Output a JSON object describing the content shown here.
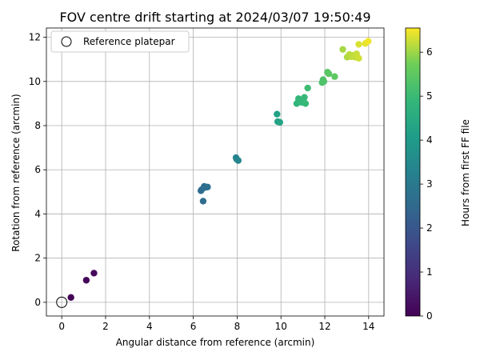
{
  "chart_data": {
    "type": "scatter",
    "title": "FOV centre drift starting at 2024/03/07 19:50:49",
    "xlabel": "Angular distance from reference (arcmin)",
    "ylabel": "Rotation from reference (arcmin)",
    "xlim": [
      -0.7,
      14.7
    ],
    "ylim": [
      -0.62,
      12.42
    ],
    "xticks": [
      0,
      2,
      4,
      6,
      8,
      10,
      12,
      14
    ],
    "yticks": [
      0,
      2,
      4,
      6,
      8,
      10,
      12
    ],
    "grid": true,
    "legend": {
      "placement": "top-left",
      "entries": [
        "Reference platepar"
      ]
    },
    "reference_point": {
      "x": 0,
      "y": 0
    },
    "colorbar": {
      "label": "Hours from first FF file",
      "range": [
        0,
        6.55
      ],
      "ticks": [
        0,
        1,
        2,
        3,
        4,
        5,
        6
      ],
      "colormap": "viridis"
    },
    "points": [
      {
        "x": 0.42,
        "y": 0.22,
        "hours": 0.05
      },
      {
        "x": 1.12,
        "y": 1.0,
        "hours": 0.12
      },
      {
        "x": 1.47,
        "y": 1.32,
        "hours": 0.18
      },
      {
        "x": 6.35,
        "y": 5.05,
        "hours": 2.6
      },
      {
        "x": 6.38,
        "y": 5.1,
        "hours": 2.6
      },
      {
        "x": 6.45,
        "y": 4.58,
        "hours": 2.62
      },
      {
        "x": 6.5,
        "y": 5.25,
        "hours": 2.65
      },
      {
        "x": 6.55,
        "y": 5.2,
        "hours": 2.66
      },
      {
        "x": 6.65,
        "y": 5.22,
        "hours": 2.68
      },
      {
        "x": 7.95,
        "y": 6.55,
        "hours": 3.3
      },
      {
        "x": 7.98,
        "y": 6.48,
        "hours": 3.32
      },
      {
        "x": 8.05,
        "y": 6.42,
        "hours": 3.35
      },
      {
        "x": 9.82,
        "y": 8.52,
        "hours": 4.2
      },
      {
        "x": 9.85,
        "y": 8.18,
        "hours": 4.25
      },
      {
        "x": 9.95,
        "y": 8.15,
        "hours": 4.28
      },
      {
        "x": 10.72,
        "y": 9.0,
        "hours": 4.8
      },
      {
        "x": 10.8,
        "y": 9.22,
        "hours": 4.85
      },
      {
        "x": 10.88,
        "y": 9.1,
        "hours": 4.87
      },
      {
        "x": 10.95,
        "y": 9.05,
        "hours": 4.9
      },
      {
        "x": 11.02,
        "y": 9.15,
        "hours": 4.92
      },
      {
        "x": 11.07,
        "y": 9.28,
        "hours": 4.95
      },
      {
        "x": 11.12,
        "y": 9.0,
        "hours": 4.96
      },
      {
        "x": 11.22,
        "y": 9.7,
        "hours": 5.05
      },
      {
        "x": 11.88,
        "y": 9.95,
        "hours": 5.25
      },
      {
        "x": 11.92,
        "y": 10.08,
        "hours": 5.28
      },
      {
        "x": 11.96,
        "y": 10.0,
        "hours": 5.3
      },
      {
        "x": 12.12,
        "y": 10.42,
        "hours": 5.42
      },
      {
        "x": 12.18,
        "y": 10.35,
        "hours": 5.44
      },
      {
        "x": 12.45,
        "y": 10.22,
        "hours": 5.5
      },
      {
        "x": 12.82,
        "y": 11.45,
        "hours": 6.05
      },
      {
        "x": 13.02,
        "y": 11.1,
        "hours": 6.1
      },
      {
        "x": 13.12,
        "y": 11.22,
        "hours": 6.15
      },
      {
        "x": 13.2,
        "y": 11.12,
        "hours": 6.17
      },
      {
        "x": 13.28,
        "y": 11.18,
        "hours": 6.2
      },
      {
        "x": 13.38,
        "y": 11.1,
        "hours": 6.22
      },
      {
        "x": 13.45,
        "y": 11.25,
        "hours": 6.25
      },
      {
        "x": 13.55,
        "y": 11.05,
        "hours": 6.28
      },
      {
        "x": 13.55,
        "y": 11.68,
        "hours": 6.35
      },
      {
        "x": 13.85,
        "y": 11.72,
        "hours": 6.42
      },
      {
        "x": 13.98,
        "y": 11.82,
        "hours": 6.48
      }
    ]
  }
}
